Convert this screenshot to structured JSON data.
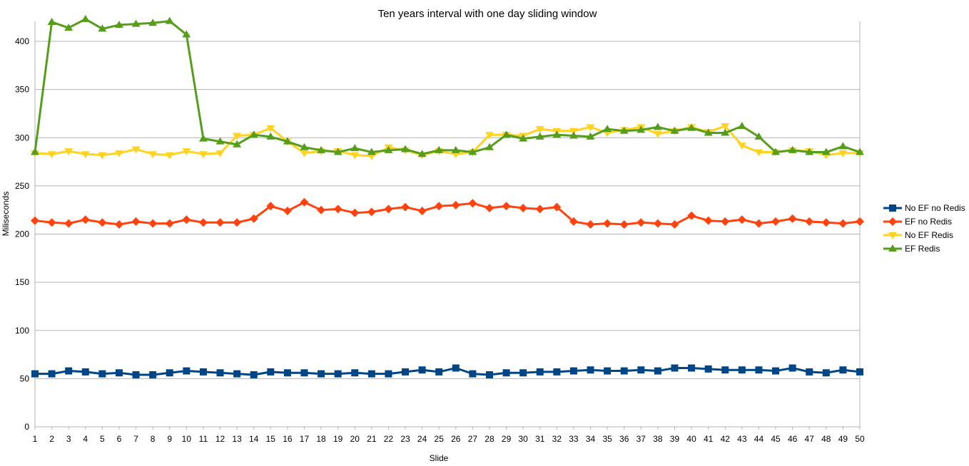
{
  "chart_data": {
    "type": "line",
    "title": "Ten years interval with one day sliding window",
    "xlabel": "Slide",
    "ylabel": "Miliseconds",
    "ylim": [
      0,
      400
    ],
    "yticks": [
      0,
      50,
      100,
      150,
      200,
      250,
      300,
      350,
      400
    ],
    "grid": true,
    "legend_position": "right",
    "x": [
      1,
      2,
      3,
      4,
      5,
      6,
      7,
      8,
      9,
      10,
      11,
      12,
      13,
      14,
      15,
      16,
      17,
      18,
      19,
      20,
      21,
      22,
      23,
      24,
      25,
      26,
      27,
      28,
      29,
      30,
      31,
      32,
      33,
      34,
      35,
      36,
      37,
      38,
      39,
      40,
      41,
      42,
      43,
      44,
      45,
      46,
      47,
      48,
      49,
      50
    ],
    "series": [
      {
        "name": "No EF no Redis",
        "color": "#004586",
        "marker": "square",
        "values": [
          55,
          55,
          58,
          57,
          55,
          56,
          54,
          54,
          56,
          58,
          57,
          56,
          55,
          54,
          57,
          56,
          56,
          55,
          55,
          56,
          55,
          55,
          57,
          59,
          57,
          61,
          55,
          54,
          56,
          56,
          57,
          57,
          58,
          59,
          58,
          58,
          59,
          58,
          61,
          61,
          60,
          59,
          59,
          59,
          58,
          61,
          57,
          56,
          59,
          57
        ]
      },
      {
        "name": "EF no Redis",
        "color": "#ff420e",
        "marker": "diamond",
        "values": [
          214,
          212,
          211,
          215,
          212,
          210,
          213,
          211,
          211,
          215,
          212,
          212,
          212,
          216,
          229,
          224,
          233,
          225,
          226,
          222,
          223,
          226,
          228,
          224,
          229,
          230,
          232,
          227,
          229,
          227,
          226,
          228,
          213,
          210,
          211,
          210,
          212,
          211,
          210,
          219,
          214,
          213,
          215,
          211,
          213,
          216,
          213,
          212,
          211,
          213
        ]
      },
      {
        "name": "No EF Redis",
        "color": "#ffd320",
        "marker": "triangle-down",
        "values": [
          284,
          283,
          286,
          283,
          282,
          284,
          288,
          283,
          282,
          286,
          283,
          284,
          302,
          303,
          310,
          296,
          284,
          286,
          286,
          282,
          281,
          290,
          287,
          282,
          286,
          283,
          285,
          303,
          303,
          302,
          309,
          307,
          307,
          311,
          305,
          308,
          311,
          304,
          307,
          311,
          306,
          312,
          292,
          285,
          285,
          287,
          286,
          282,
          284,
          284
        ]
      },
      {
        "name": "EF Redis",
        "color": "#579d1c",
        "marker": "triangle-up",
        "values": [
          285,
          420,
          414,
          423,
          413,
          417,
          418,
          419,
          421,
          407,
          299,
          296,
          293,
          303,
          301,
          296,
          290,
          287,
          285,
          289,
          285,
          287,
          288,
          283,
          287,
          287,
          285,
          290,
          303,
          299,
          301,
          303,
          302,
          301,
          309,
          307,
          308,
          311,
          307,
          310,
          305,
          305,
          312,
          301,
          285,
          287,
          285,
          285,
          291,
          285
        ]
      }
    ]
  }
}
